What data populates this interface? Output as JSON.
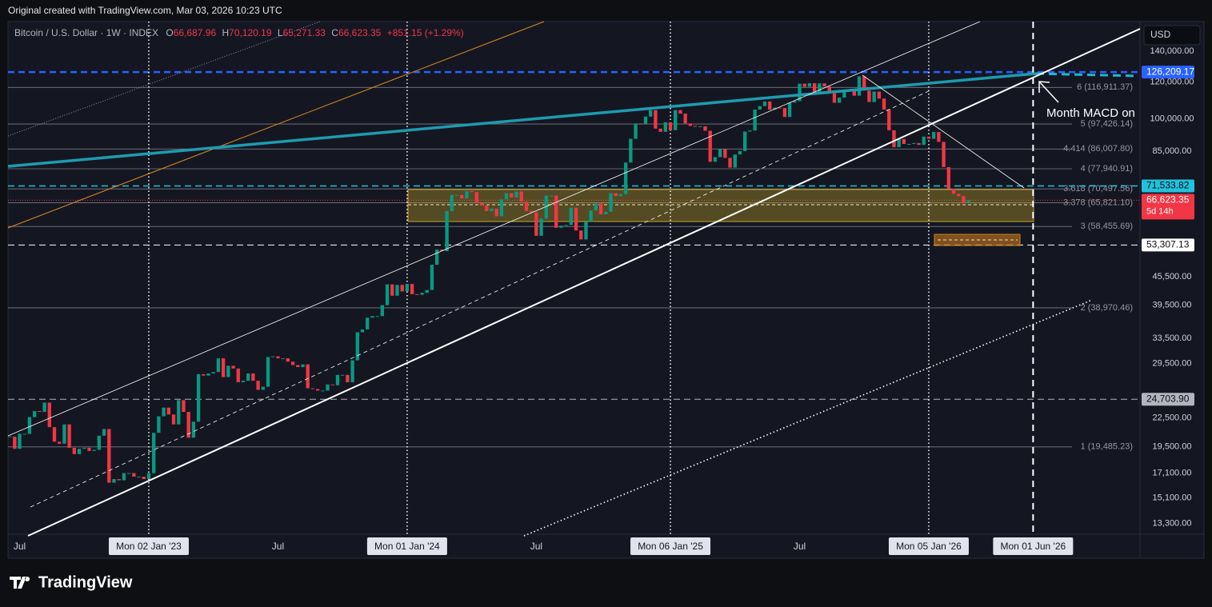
{
  "header": {
    "attribution": "Original created with TradingView.com, Mar 03, 2026 10:23 UTC"
  },
  "toolbar": {
    "currency": "USD"
  },
  "footer": {
    "logo": "TradingView"
  },
  "chart_data": {
    "type": "candlestick",
    "symbol": "Bitcoin / U.S. Dollar · 1W · INDEX",
    "legend": [
      {
        "key": "O",
        "value": "66,687.96"
      },
      {
        "key": "H",
        "value": "70,120.19"
      },
      {
        "key": "L",
        "value": "65,271.33"
      },
      {
        "key": "C",
        "value": "66,623.35"
      }
    ],
    "change": "+851.15 (+1.29%)",
    "annotation": "Month MACD on",
    "up_color": "#089981",
    "down_color": "#f23645",
    "log_scale": true,
    "grid": false,
    "ylim": [
      12610,
      162300
    ],
    "yticks": [
      {
        "value": 140000,
        "label": "140,000.00"
      },
      {
        "value": 120000,
        "label": "120,000.00"
      },
      {
        "value": 100000,
        "label": "100,000.00"
      },
      {
        "value": 85000,
        "label": "85,000.00"
      },
      {
        "value": 45500,
        "label": "45,500.00"
      },
      {
        "value": 39500,
        "label": "39,500.00"
      },
      {
        "value": 33500,
        "label": "33,500.00"
      },
      {
        "value": 29500,
        "label": "29,500.00"
      },
      {
        "value": 22500,
        "label": "22,500.00"
      },
      {
        "value": 19500,
        "label": "19,500.00"
      },
      {
        "value": 17100,
        "label": "17,100.00"
      },
      {
        "value": 15100,
        "label": "15,100.00"
      },
      {
        "value": 13300,
        "label": "13,300.00"
      }
    ],
    "levels": [
      {
        "value": 116911.37,
        "label": "6 (116,911.37)"
      },
      {
        "value": 97426.14,
        "label": "5 (97,426.14)"
      },
      {
        "value": 86007.8,
        "label": "4.414 (86,007.80)"
      },
      {
        "value": 77940.91,
        "label": "4 (77,940.91)"
      },
      {
        "value": 70497.56,
        "label": "3.618 (70,497.56)"
      },
      {
        "value": 65821.1,
        "label": "3.378 (65,821.10)"
      },
      {
        "value": 58455.69,
        "label": "3 (58,455.69)"
      },
      {
        "value": 38970.46,
        "label": "2 (38,970.46)"
      },
      {
        "value": 19485.23,
        "label": "1 (19,485.23)"
      }
    ],
    "price_labels": [
      {
        "value": 126209.17,
        "label": "126,209.17",
        "color": "#2962ff",
        "text_color": "#ffffff",
        "line_color": "#2962ff",
        "line_width": 2.5
      },
      {
        "value": 71533.82,
        "label": "71,533.82",
        "color": "#22c1dc",
        "text_color": "#0b0d14",
        "line_color": "#22c1dc",
        "line_width": 1.5
      },
      {
        "value": 66623.35,
        "label": "66,623.35",
        "countdown": "5d 14h",
        "color": "#f23645",
        "text_color": "#ffffff",
        "line_color": "#f23645",
        "line_width": 1
      },
      {
        "value": 53307.13,
        "label": "53,307.13",
        "color": "#ffffff",
        "text_color": "#0b0d14",
        "line_color": "#ffffff",
        "line_width": 1
      },
      {
        "value": 24703.9,
        "label": "24,703.90",
        "color": "#b2b5be",
        "text_color": "#0b0d14",
        "line_color": "#b2b5be",
        "line_width": 1
      }
    ],
    "categories": [
      null,
      null,
      "Jul",
      null,
      null,
      null,
      null,
      null,
      null,
      null,
      null,
      null,
      null,
      null,
      null,
      null,
      null,
      null,
      null,
      null,
      null,
      null,
      null,
      null,
      null,
      null,
      null,
      null,
      "Mon 02 Jan '23",
      null,
      null,
      null,
      null,
      null,
      null,
      null,
      null,
      null,
      null,
      null,
      null,
      null,
      null,
      null,
      null,
      null,
      null,
      null,
      null,
      null,
      null,
      null,
      null,
      null,
      "Jul",
      null,
      null,
      null,
      null,
      null,
      null,
      null,
      null,
      null,
      null,
      null,
      null,
      null,
      null,
      null,
      null,
      null,
      null,
      null,
      null,
      null,
      null,
      null,
      null,
      null,
      "Mon 01 Jan '24",
      null,
      null,
      null,
      null,
      null,
      null,
      null,
      null,
      null,
      null,
      null,
      null,
      null,
      null,
      null,
      null,
      null,
      null,
      null,
      null,
      null,
      null,
      null,
      null,
      null,
      "Jul",
      null,
      null,
      null,
      null,
      null,
      null,
      null,
      null,
      null,
      null,
      null,
      null,
      null,
      null,
      null,
      null,
      null,
      null,
      null,
      null,
      null,
      null,
      null,
      null,
      null,
      null,
      "Mon 06 Jan '25",
      null,
      null,
      null,
      null,
      null,
      null,
      null,
      null,
      null,
      null,
      null,
      null,
      null,
      null,
      null,
      null,
      null,
      null,
      null,
      null,
      null,
      null,
      null,
      null,
      null,
      "Jul",
      null,
      null,
      null,
      null,
      null,
      null,
      null,
      null,
      null,
      null,
      null,
      null,
      null,
      null,
      null,
      null,
      null,
      null,
      null,
      null,
      null,
      null,
      null,
      null,
      null,
      "Mon 05 Jan '26",
      null,
      null,
      null,
      null,
      null,
      null,
      null,
      null,
      null,
      null,
      null,
      null,
      null,
      null,
      null,
      null,
      null,
      null,
      null,
      null,
      "Mon 01 Jun '26",
      null,
      null,
      null,
      null,
      null,
      null,
      null,
      null,
      null,
      null,
      null,
      null,
      null,
      null,
      null,
      null,
      null,
      null,
      null,
      null
    ],
    "values": [
      20500,
      19300,
      20800,
      20800,
      22600,
      23300,
      23200,
      24300,
      21500,
      20000,
      19800,
      21800,
      19400,
      18800,
      19300,
      19400,
      19100,
      19200,
      20600,
      21300,
      16300,
      16600,
      16500,
      17100,
      17100,
      16800,
      16800,
      16600,
      17100,
      20900,
      22700,
      23700,
      22900,
      21800,
      24600,
      23200,
      20400,
      22100,
      28000,
      27800,
      28100,
      28300,
      30300,
      27600,
      29200,
      28800,
      26900,
      27100,
      28100,
      27100,
      25900,
      26300,
      30500,
      30600,
      30300,
      30300,
      29800,
      29300,
      29000,
      29400,
      26100,
      26000,
      25800,
      25800,
      26600,
      26500,
      27900,
      27900,
      26900,
      30000,
      34500,
      35000,
      37100,
      37400,
      37400,
      39500,
      43800,
      41400,
      43700,
      42300,
      43900,
      41700,
      41600,
      42000,
      42600,
      48300,
      52100,
      51700,
      63100,
      68400,
      68400,
      67200,
      69700,
      69400,
      65700,
      64900,
      63100,
      63900,
      61500,
      66900,
      69000,
      67500,
      69600,
      66200,
      63200,
      62700,
      55800,
      60800,
      68200,
      68200,
      58100,
      58700,
      58900,
      64200,
      57300,
      54800,
      59900,
      63300,
      65600,
      62100,
      62900,
      69000,
      68000,
      68700,
      80400,
      90500,
      97700,
      97200,
      101100,
      104400,
      95200,
      93700,
      98300,
      94500,
      104400,
      102600,
      97700,
      96500,
      96100,
      96300,
      94200,
      80700,
      82600,
      86000,
      82300,
      78400,
      83700,
      85100,
      93800,
      94300,
      104700,
      106500,
      109000,
      104600,
      105700,
      105500,
      100900,
      108400,
      109200,
      119100,
      117300,
      119400,
      114200,
      119300,
      117500,
      113500,
      108300,
      111100,
      115300,
      115300,
      112200,
      123500,
      115100,
      108700,
      114500,
      110600,
      104700,
      94400,
      86800,
      90400,
      88200,
      88200,
      88600,
      87800,
      91500,
      90500,
      93600,
      89100,
      78600,
      70500,
      68800,
      68000,
      65770,
      66623.35,
      null,
      null,
      null,
      null,
      null,
      null,
      null,
      null,
      null,
      null,
      null,
      null,
      null,
      null,
      null,
      null,
      null,
      null,
      null,
      null,
      null,
      null,
      null,
      null,
      null,
      null,
      null,
      null,
      null,
      null,
      null,
      null,
      null
    ]
  }
}
